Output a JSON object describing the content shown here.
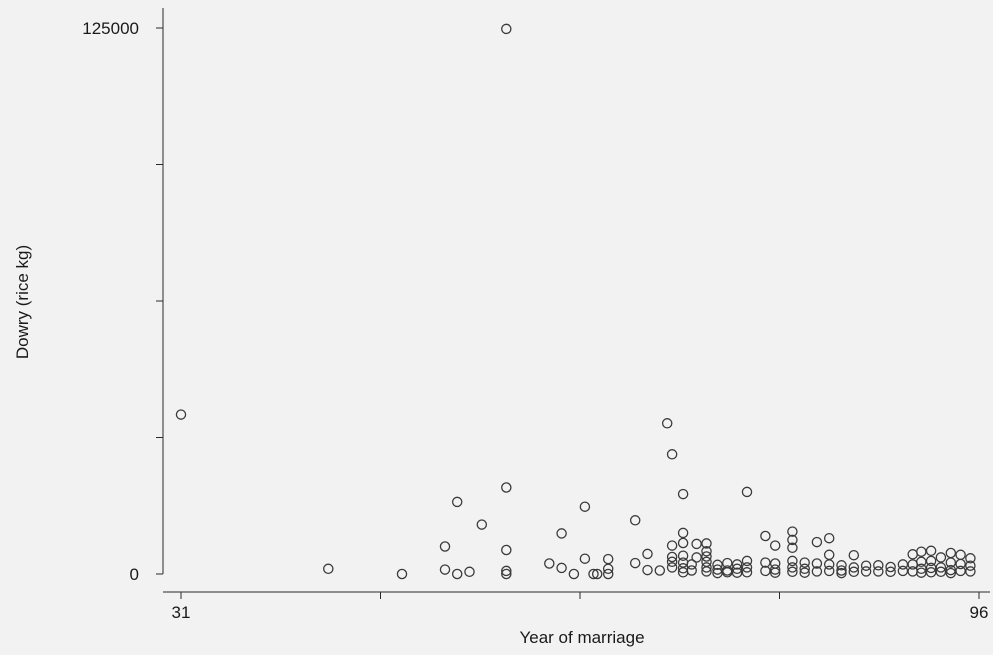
{
  "chart_data": {
    "type": "scatter",
    "xlabel": "Year of marriage",
    "ylabel": "Dowry (rice kg)",
    "xlim": [
      31,
      96
    ],
    "ylim": [
      0,
      125000
    ],
    "x_ticks": [
      31,
      47.25,
      63.5,
      79.75,
      96
    ],
    "x_tick_labels": [
      "31",
      "",
      "",
      "",
      "96"
    ],
    "y_ticks": [
      0,
      31250,
      62500,
      93750,
      125000
    ],
    "y_tick_labels": [
      "0",
      "",
      "",
      "",
      "125000"
    ],
    "grid": false,
    "points": [
      [
        31,
        36500
      ],
      [
        43,
        1200
      ],
      [
        49,
        0
      ],
      [
        52.5,
        6300
      ],
      [
        52.5,
        1000
      ],
      [
        53.5,
        16500
      ],
      [
        53.5,
        0
      ],
      [
        54.5,
        500
      ],
      [
        55.5,
        11300
      ],
      [
        57.5,
        124800
      ],
      [
        57.5,
        19800
      ],
      [
        57.5,
        5500
      ],
      [
        57.5,
        700
      ],
      [
        57.5,
        0
      ],
      [
        61,
        2400
      ],
      [
        62,
        9300
      ],
      [
        62,
        1400
      ],
      [
        63,
        0
      ],
      [
        63.9,
        15400
      ],
      [
        63.9,
        3500
      ],
      [
        64.6,
        0
      ],
      [
        64.9,
        0
      ],
      [
        65.8,
        0
      ],
      [
        65.8,
        1200
      ],
      [
        65.8,
        3400
      ],
      [
        68,
        12300
      ],
      [
        68,
        2500
      ],
      [
        69,
        4600
      ],
      [
        69,
        900
      ],
      [
        70,
        800
      ],
      [
        70.6,
        34500
      ],
      [
        71,
        27400
      ],
      [
        71,
        1500
      ],
      [
        71,
        2800
      ],
      [
        71,
        6500
      ],
      [
        71,
        3900
      ],
      [
        71.9,
        18300
      ],
      [
        71.9,
        9400
      ],
      [
        71.9,
        7100
      ],
      [
        71.9,
        4200
      ],
      [
        71.9,
        2600
      ],
      [
        71.9,
        1300
      ],
      [
        71.9,
        400
      ],
      [
        72.6,
        2200
      ],
      [
        72.6,
        800
      ],
      [
        73,
        6900
      ],
      [
        73,
        3800
      ],
      [
        73.8,
        7000
      ],
      [
        73.8,
        5200
      ],
      [
        73.8,
        4000
      ],
      [
        73.8,
        2800
      ],
      [
        73.8,
        1500
      ],
      [
        73.8,
        600
      ],
      [
        74.7,
        2100
      ],
      [
        74.7,
        1000
      ],
      [
        74.7,
        200
      ],
      [
        75.5,
        2500
      ],
      [
        75.5,
        800
      ],
      [
        75.5,
        400
      ],
      [
        76.3,
        2200
      ],
      [
        76.3,
        1200
      ],
      [
        76.3,
        300
      ],
      [
        77.1,
        18800
      ],
      [
        77.1,
        3000
      ],
      [
        77.1,
        1500
      ],
      [
        77.1,
        400
      ],
      [
        78.6,
        8700
      ],
      [
        78.6,
        2600
      ],
      [
        78.6,
        700
      ],
      [
        79.4,
        6500
      ],
      [
        79.4,
        2400
      ],
      [
        79.4,
        1000
      ],
      [
        79.4,
        300
      ],
      [
        80.8,
        9700
      ],
      [
        80.8,
        7800
      ],
      [
        80.8,
        6000
      ],
      [
        80.8,
        3000
      ],
      [
        80.8,
        1500
      ],
      [
        80.8,
        500
      ],
      [
        81.8,
        2600
      ],
      [
        81.8,
        1200
      ],
      [
        81.8,
        300
      ],
      [
        82.8,
        7300
      ],
      [
        82.8,
        2400
      ],
      [
        82.8,
        600
      ],
      [
        83.8,
        8200
      ],
      [
        83.8,
        4400
      ],
      [
        83.8,
        2200
      ],
      [
        83.8,
        700
      ],
      [
        84.8,
        2000
      ],
      [
        84.8,
        800
      ],
      [
        84.8,
        200
      ],
      [
        85.8,
        4300
      ],
      [
        85.8,
        1500
      ],
      [
        85.8,
        500
      ],
      [
        86.8,
        1900
      ],
      [
        86.8,
        600
      ],
      [
        87.8,
        2000
      ],
      [
        87.8,
        600
      ],
      [
        88.8,
        1600
      ],
      [
        88.8,
        500
      ],
      [
        89.8,
        2200
      ],
      [
        89.8,
        700
      ],
      [
        90.6,
        4500
      ],
      [
        90.6,
        2200
      ],
      [
        90.6,
        600
      ],
      [
        91.3,
        5100
      ],
      [
        91.3,
        2800
      ],
      [
        91.3,
        1200
      ],
      [
        91.3,
        300
      ],
      [
        92.1,
        5300
      ],
      [
        92.1,
        3000
      ],
      [
        92.1,
        1400
      ],
      [
        92.1,
        400
      ],
      [
        92.9,
        3800
      ],
      [
        92.9,
        1500
      ],
      [
        92.9,
        500
      ],
      [
        93.7,
        4800
      ],
      [
        93.7,
        2600
      ],
      [
        93.7,
        900
      ],
      [
        93.7,
        200
      ],
      [
        94.5,
        4400
      ],
      [
        94.5,
        2300
      ],
      [
        94.5,
        700
      ],
      [
        95.3,
        3600
      ],
      [
        95.3,
        1900
      ],
      [
        95.3,
        600
      ]
    ]
  }
}
